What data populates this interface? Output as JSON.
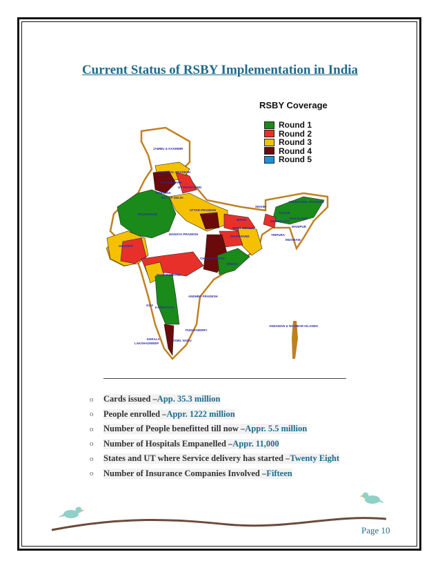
{
  "title": "Current Status of RSBY Implementation in India",
  "map": {
    "legend_title": "RSBY Coverage",
    "legend": [
      {
        "label": "Round 1",
        "color": "#1a8a1a"
      },
      {
        "label": "Round 2",
        "color": "#e8302a"
      },
      {
        "label": "Round 3",
        "color": "#f5c000"
      },
      {
        "label": "Round 4",
        "color": "#6a0a0a"
      },
      {
        "label": "Round 5",
        "color": "#1f8fd6"
      }
    ],
    "states": [
      "JAMMU & KASHMIR",
      "HIMACHAL PRADESH",
      "CHANDIGARH",
      "UTTARAKHAND",
      "HARYANA",
      "NCT OF DELHI",
      "RAJASTHAN",
      "UTTAR PRADESH",
      "SIKKIM",
      "ARUNACHAL PRADESH",
      "ASSAM",
      "NAGALAND",
      "MEGHALAYA",
      "MANIPUR",
      "TRIPURA",
      "MIZORAM",
      "BIHAR",
      "WEST BENGAL",
      "JHARKHAND",
      "MADHYA PRADESH",
      "GUJARAT",
      "CHHATTISGARH",
      "ORISSA",
      "MAHARASHTRA",
      "ANDHRA PRADESH",
      "GOA",
      "KARNATAKA",
      "PUDUCHERRY",
      "KERALA",
      "TAMIL NADU",
      "LAKSHADWEEP",
      "ANDAMAN & NICOBAR ISLANDS"
    ]
  },
  "bullets": [
    {
      "label": "Cards issued – ",
      "value": "App. 35.3 million"
    },
    {
      "label": "People enrolled – ",
      "value": "Appr.  1222 million"
    },
    {
      "label": "Number of People benefitted till now – ",
      "value": "Appr.  5.5 million"
    },
    {
      "label": "Number of Hospitals Empanelled  – ",
      "value": "Appr.  11,000"
    },
    {
      "label": "States and UT where Service delivery has started – ",
      "value": "Twenty Eight"
    },
    {
      "label": "Number of Insurance Companies Involved – ",
      "value": "Fifteen"
    }
  ],
  "bullet_marker": "o",
  "footer": {
    "page": "Page 10"
  }
}
